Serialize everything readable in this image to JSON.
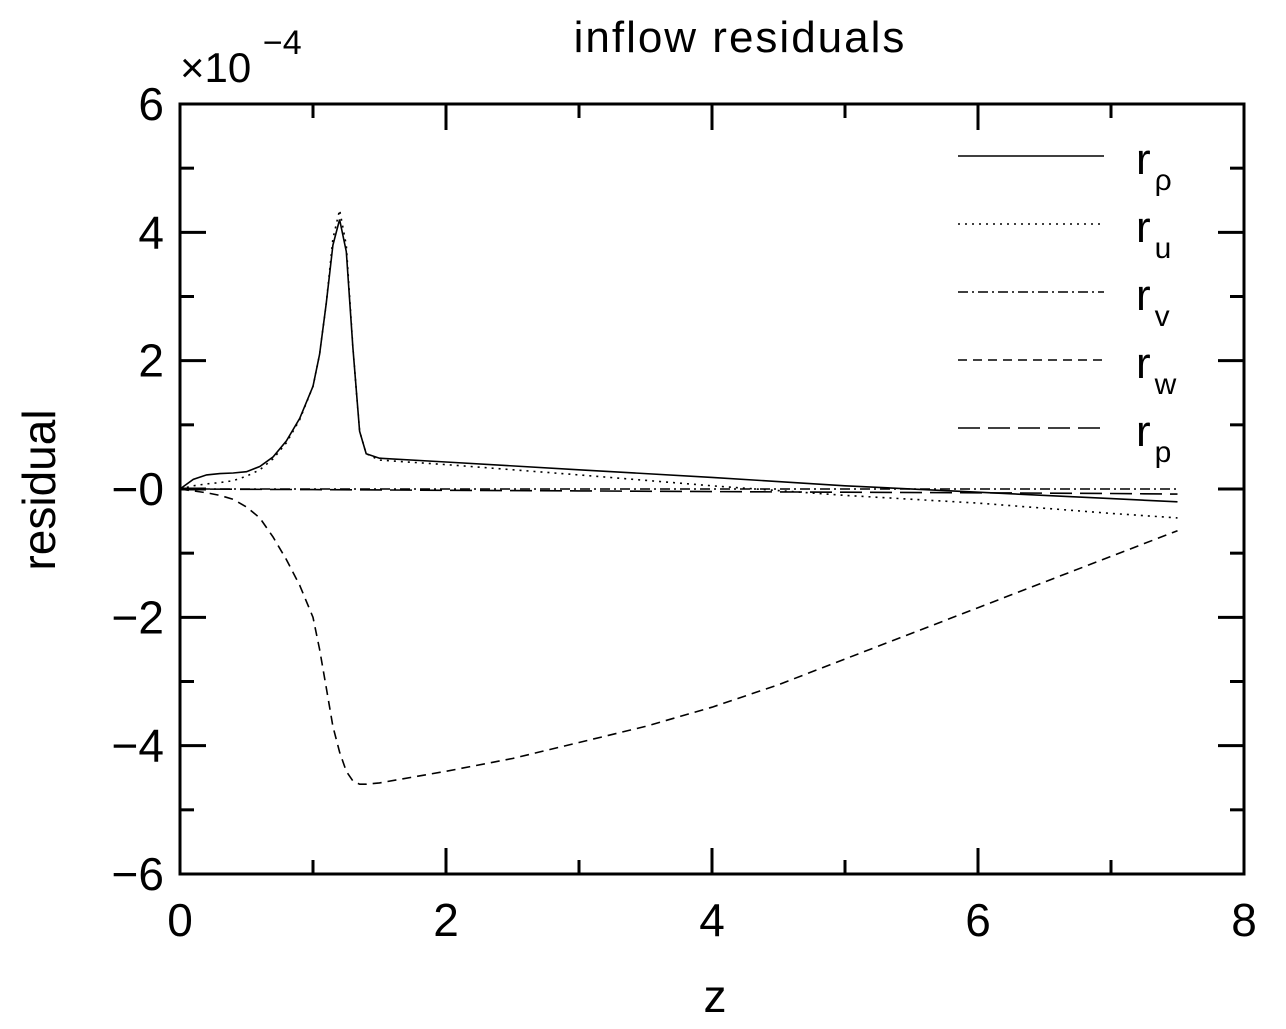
{
  "chart_data": {
    "type": "line",
    "title": "inflow residuals",
    "xlabel": "z",
    "ylabel": "residual",
    "y_multiplier": {
      "base": "×10",
      "exponent": "−4"
    },
    "xlim": [
      0,
      8
    ],
    "ylim": [
      -6,
      6
    ],
    "x_ticks": [
      0,
      2,
      4,
      6,
      8
    ],
    "x_tick_labels": [
      "0",
      "2",
      "4",
      "6",
      "8"
    ],
    "y_ticks": [
      6,
      4,
      2,
      0,
      -2,
      -4,
      -6
    ],
    "y_tick_labels": [
      "6",
      "4",
      "2",
      "−0",
      "−2",
      "−4",
      "−6"
    ],
    "grid": false,
    "legend_position": "top-right",
    "series": [
      {
        "name": "r_ρ",
        "legend_main": "r",
        "legend_sub": "ρ",
        "style": "solid",
        "points": [
          [
            0,
            0
          ],
          [
            0.1,
            0.15
          ],
          [
            0.2,
            0.22
          ],
          [
            0.3,
            0.24
          ],
          [
            0.4,
            0.25
          ],
          [
            0.5,
            0.27
          ],
          [
            0.6,
            0.35
          ],
          [
            0.7,
            0.5
          ],
          [
            0.8,
            0.75
          ],
          [
            0.9,
            1.1
          ],
          [
            1.0,
            1.6
          ],
          [
            1.05,
            2.1
          ],
          [
            1.1,
            2.9
          ],
          [
            1.15,
            3.8
          ],
          [
            1.2,
            4.2
          ],
          [
            1.25,
            3.7
          ],
          [
            1.3,
            2.2
          ],
          [
            1.35,
            0.9
          ],
          [
            1.4,
            0.55
          ],
          [
            1.5,
            0.48
          ],
          [
            2.0,
            0.42
          ],
          [
            3.0,
            0.3
          ],
          [
            4.0,
            0.18
          ],
          [
            5.0,
            0.05
          ],
          [
            6.0,
            -0.05
          ],
          [
            7.0,
            -0.15
          ],
          [
            7.5,
            -0.2
          ]
        ]
      },
      {
        "name": "r_u",
        "legend_main": "r",
        "legend_sub": "u",
        "style": "dotted",
        "points": [
          [
            0,
            0
          ],
          [
            0.1,
            0.05
          ],
          [
            0.2,
            0.08
          ],
          [
            0.3,
            0.1
          ],
          [
            0.4,
            0.13
          ],
          [
            0.5,
            0.2
          ],
          [
            0.6,
            0.3
          ],
          [
            0.7,
            0.47
          ],
          [
            0.8,
            0.72
          ],
          [
            0.9,
            1.08
          ],
          [
            1.0,
            1.6
          ],
          [
            1.05,
            2.1
          ],
          [
            1.1,
            2.9
          ],
          [
            1.15,
            3.9
          ],
          [
            1.2,
            4.35
          ],
          [
            1.25,
            3.8
          ],
          [
            1.3,
            2.2
          ],
          [
            1.35,
            0.9
          ],
          [
            1.4,
            0.55
          ],
          [
            1.5,
            0.45
          ],
          [
            2.0,
            0.38
          ],
          [
            3.0,
            0.22
          ],
          [
            4.0,
            0.05
          ],
          [
            5.0,
            -0.1
          ],
          [
            6.0,
            -0.22
          ],
          [
            7.0,
            -0.38
          ],
          [
            7.5,
            -0.45
          ]
        ]
      },
      {
        "name": "r_v",
        "legend_main": "r",
        "legend_sub": "v",
        "style": "dashdot",
        "points": [
          [
            0,
            0
          ],
          [
            1,
            0
          ],
          [
            2,
            0
          ],
          [
            3,
            0
          ],
          [
            4,
            0
          ],
          [
            5,
            0
          ],
          [
            6,
            0
          ],
          [
            7,
            0
          ],
          [
            7.5,
            0
          ]
        ]
      },
      {
        "name": "r_w",
        "legend_main": "r",
        "legend_sub": "w",
        "style": "shortdash",
        "points": [
          [
            0,
            0
          ],
          [
            0.1,
            -0.03
          ],
          [
            0.2,
            -0.06
          ],
          [
            0.3,
            -0.1
          ],
          [
            0.4,
            -0.16
          ],
          [
            0.5,
            -0.28
          ],
          [
            0.6,
            -0.45
          ],
          [
            0.7,
            -0.75
          ],
          [
            0.8,
            -1.1
          ],
          [
            0.9,
            -1.5
          ],
          [
            1.0,
            -2.0
          ],
          [
            1.05,
            -2.5
          ],
          [
            1.1,
            -3.1
          ],
          [
            1.15,
            -3.7
          ],
          [
            1.2,
            -4.1
          ],
          [
            1.25,
            -4.4
          ],
          [
            1.3,
            -4.55
          ],
          [
            1.35,
            -4.6
          ],
          [
            1.4,
            -4.6
          ],
          [
            1.5,
            -4.58
          ],
          [
            2.0,
            -4.4
          ],
          [
            2.5,
            -4.2
          ],
          [
            3.0,
            -3.95
          ],
          [
            3.5,
            -3.7
          ],
          [
            4.0,
            -3.4
          ],
          [
            4.5,
            -3.05
          ],
          [
            5.0,
            -2.65
          ],
          [
            5.5,
            -2.25
          ],
          [
            6.0,
            -1.85
          ],
          [
            6.5,
            -1.45
          ],
          [
            7.0,
            -1.05
          ],
          [
            7.5,
            -0.65
          ]
        ]
      },
      {
        "name": "r_p",
        "legend_main": "r",
        "legend_sub": "p",
        "style": "longdash",
        "points": [
          [
            0,
            0
          ],
          [
            1,
            -0.01
          ],
          [
            2,
            -0.02
          ],
          [
            3,
            -0.03
          ],
          [
            4,
            -0.04
          ],
          [
            5,
            -0.05
          ],
          [
            6,
            -0.06
          ],
          [
            7,
            -0.07
          ],
          [
            7.5,
            -0.08
          ]
        ]
      }
    ]
  }
}
